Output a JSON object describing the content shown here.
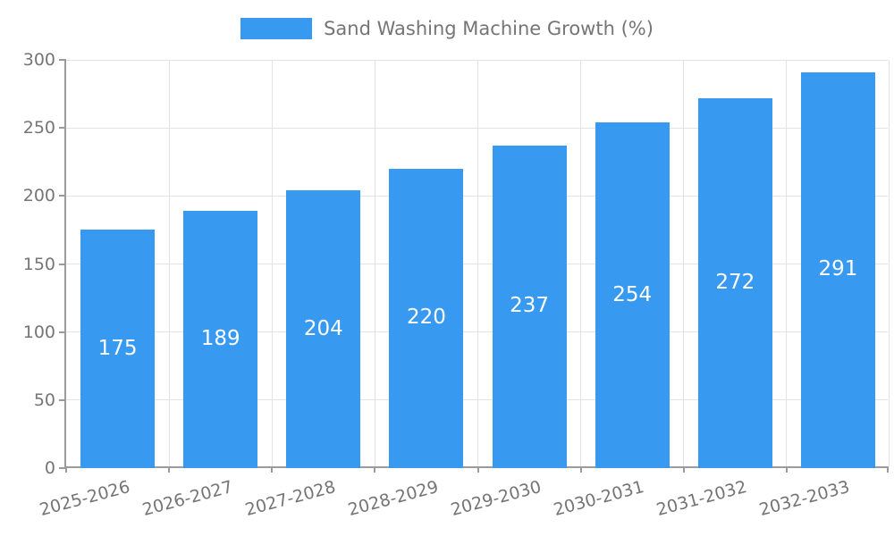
{
  "chart_data": {
    "type": "bar",
    "title": "Sand Washing Machine Growth (%)",
    "categories": [
      "2025-2026",
      "2026-2027",
      "2027-2028",
      "2028-2029",
      "2029-2030",
      "2030-2031",
      "2031-2032",
      "2032-2033"
    ],
    "series": [
      {
        "name": "Sand Washing Machine Growth (%)",
        "values": [
          175,
          189,
          204,
          220,
          237,
          254,
          272,
          291
        ]
      }
    ],
    "xlabel": "",
    "ylabel": "",
    "ylim": [
      0,
      300
    ],
    "yticks": [
      0,
      50,
      100,
      150,
      200,
      250,
      300
    ],
    "grid": true,
    "legend_position": "top",
    "colors": {
      "bar": "#3899f0",
      "value_label": "#ffffff",
      "axis": "#9b9b9b",
      "gridline": "#e3e3e3",
      "text": "#757575"
    }
  }
}
